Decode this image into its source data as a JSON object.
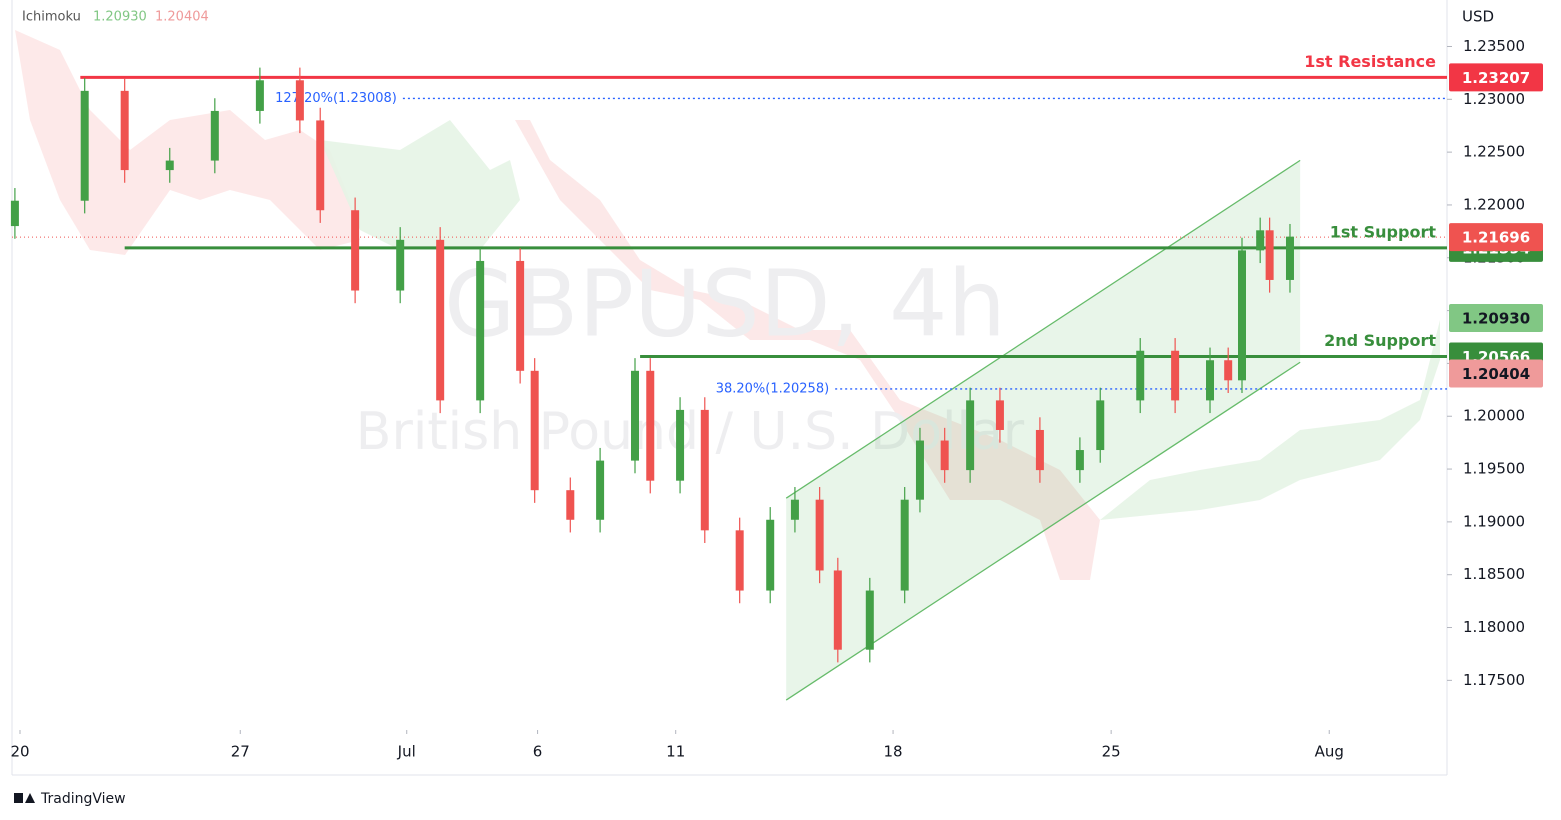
{
  "chart_data": {
    "type": "candlestick",
    "title": "GBPUSD, 4h",
    "subtitle": "British Pound / U.S. Dollar",
    "source": "TradingView",
    "currency": "USD",
    "indicator": {
      "name": "Ichimoku",
      "values": [
        1.2093,
        1.20404
      ],
      "value_labels": [
        "1.20930",
        "1.20404"
      ],
      "colors": [
        "#81c784",
        "#ef9a9a"
      ]
    },
    "up_color": "#43a047",
    "down_color": "#ef5350",
    "x": [
      0.4,
      10.0,
      15.5,
      21.7,
      27.9,
      34.1,
      39.6,
      42.4,
      47.2,
      53.4,
      58.9,
      64.4,
      69.9,
      71.9,
      76.8,
      80.9,
      85.7,
      87.8,
      91.9,
      95.3,
      100.1,
      104.3,
      107.7,
      111.1,
      113.6,
      118.0,
      122.8,
      124.9,
      128.3,
      131.8,
      135.9,
      141.4,
      146.9,
      149.7,
      155.2,
      160.0,
      164.8,
      167.3,
      169.2,
      171.7,
      173.0,
      175.8
    ],
    "open": [
      1.218,
      1.2204,
      1.2308,
      1.2233,
      1.2242,
      1.2289,
      1.2318,
      1.228,
      1.2195,
      1.2119,
      1.2167,
      1.2015,
      1.2147,
      1.2043,
      1.193,
      1.1902,
      1.1958,
      1.2043,
      1.1939,
      1.2006,
      1.1892,
      1.1835,
      1.1902,
      1.1921,
      1.1854,
      1.1779,
      1.1835,
      1.1921,
      1.1977,
      1.1949,
      1.2015,
      1.1987,
      1.1949,
      1.1968,
      1.2015,
      1.2062,
      1.2015,
      1.2053,
      1.2034,
      1.2157,
      1.2176,
      1.2129
    ],
    "high": [
      1.2216,
      1.232,
      1.232,
      1.2254,
      1.2301,
      1.233,
      1.233,
      1.2292,
      1.2207,
      1.2179,
      1.2179,
      1.2159,
      1.2159,
      1.2055,
      1.1942,
      1.197,
      1.2055,
      1.2055,
      1.2018,
      1.2018,
      1.1904,
      1.1914,
      1.1933,
      1.1933,
      1.1866,
      1.1847,
      1.1933,
      1.1989,
      1.1989,
      1.2027,
      1.2027,
      1.1999,
      1.198,
      1.2027,
      1.2074,
      1.2074,
      1.2065,
      1.2065,
      1.2169,
      1.2188,
      1.2188,
      1.2182
    ],
    "low": [
      1.2168,
      1.2192,
      1.2221,
      1.2221,
      1.223,
      1.2277,
      1.2268,
      1.2183,
      1.2107,
      1.2107,
      1.2003,
      1.2003,
      1.2031,
      1.1918,
      1.189,
      1.189,
      1.1946,
      1.1927,
      1.1927,
      1.188,
      1.1823,
      1.1823,
      1.189,
      1.1842,
      1.1767,
      1.1767,
      1.1823,
      1.1909,
      1.1937,
      1.1937,
      1.1975,
      1.1937,
      1.1937,
      1.1956,
      1.2003,
      1.2003,
      1.2003,
      1.2022,
      1.2022,
      1.2145,
      1.2117,
      1.2117
    ],
    "close": [
      1.2204,
      1.2308,
      1.2233,
      1.2242,
      1.2289,
      1.2318,
      1.228,
      1.2195,
      1.2119,
      1.2167,
      1.2015,
      1.2147,
      1.2043,
      1.193,
      1.1902,
      1.1958,
      1.2043,
      1.1939,
      1.2006,
      1.1892,
      1.1835,
      1.1902,
      1.1921,
      1.1854,
      1.1779,
      1.1835,
      1.1921,
      1.1977,
      1.1949,
      1.2015,
      1.1987,
      1.1949,
      1.1968,
      1.2015,
      1.2062,
      1.2015,
      1.2053,
      1.2034,
      1.2157,
      1.2176,
      1.2129,
      1.217
    ],
    "last": 1.21696,
    "last_color": "#ef5350",
    "xlim": [
      0,
      197.4
    ],
    "xticks": [
      {
        "value": 1.1,
        "label": "20"
      },
      {
        "value": 31.4,
        "label": "27"
      },
      {
        "value": 54.3,
        "label": "Jul"
      },
      {
        "value": 72.3,
        "label": "6"
      },
      {
        "value": 91.3,
        "label": "11"
      },
      {
        "value": 121.2,
        "label": "18"
      },
      {
        "value": 151.2,
        "label": "25"
      },
      {
        "value": 181.2,
        "label": "Aug"
      }
    ],
    "ylim": [
      1.1703,
      1.2394
    ],
    "yticks": [
      {
        "value": 1.175,
        "label": "1.17500"
      },
      {
        "value": 1.18,
        "label": "1.18000"
      },
      {
        "value": 1.185,
        "label": "1.18500"
      },
      {
        "value": 1.19,
        "label": "1.19000"
      },
      {
        "value": 1.195,
        "label": "1.19500"
      },
      {
        "value": 1.2,
        "label": "1.20000"
      },
      {
        "value": 1.205,
        "label": "1.20500"
      },
      {
        "value": 1.21,
        "label": "1.21000"
      },
      {
        "value": 1.215,
        "label": "1.21500"
      },
      {
        "value": 1.22,
        "label": "1.22000"
      },
      {
        "value": 1.225,
        "label": "1.22500"
      },
      {
        "value": 1.23,
        "label": "1.23000"
      },
      {
        "value": 1.235,
        "label": "1.23500"
      }
    ],
    "levels": [
      {
        "name": "1st Resistance",
        "value": 1.23207,
        "x_start": 9.4,
        "color": "#f23645"
      },
      {
        "name": "1st Support",
        "value": 1.21594,
        "x_start": 15.5,
        "color": "#388e3c"
      },
      {
        "name": "2nd Support",
        "value": 1.20566,
        "x_start": 86.4,
        "color": "#388e3c"
      }
    ],
    "fib": [
      {
        "label": "127.20%(1.23008)",
        "value": 1.23008,
        "x_start": 36.2
      },
      {
        "label": "38.20%(1.20258)",
        "value": 1.20258,
        "x_start": 96.8
      }
    ],
    "fib_color": "#2962ff",
    "channel": {
      "x": [
        106.5,
        177.2
      ],
      "lower": [
        1.17313,
        1.20511
      ],
      "upper": [
        1.19224,
        1.22422
      ],
      "color": "#66bb6a"
    }
  }
}
